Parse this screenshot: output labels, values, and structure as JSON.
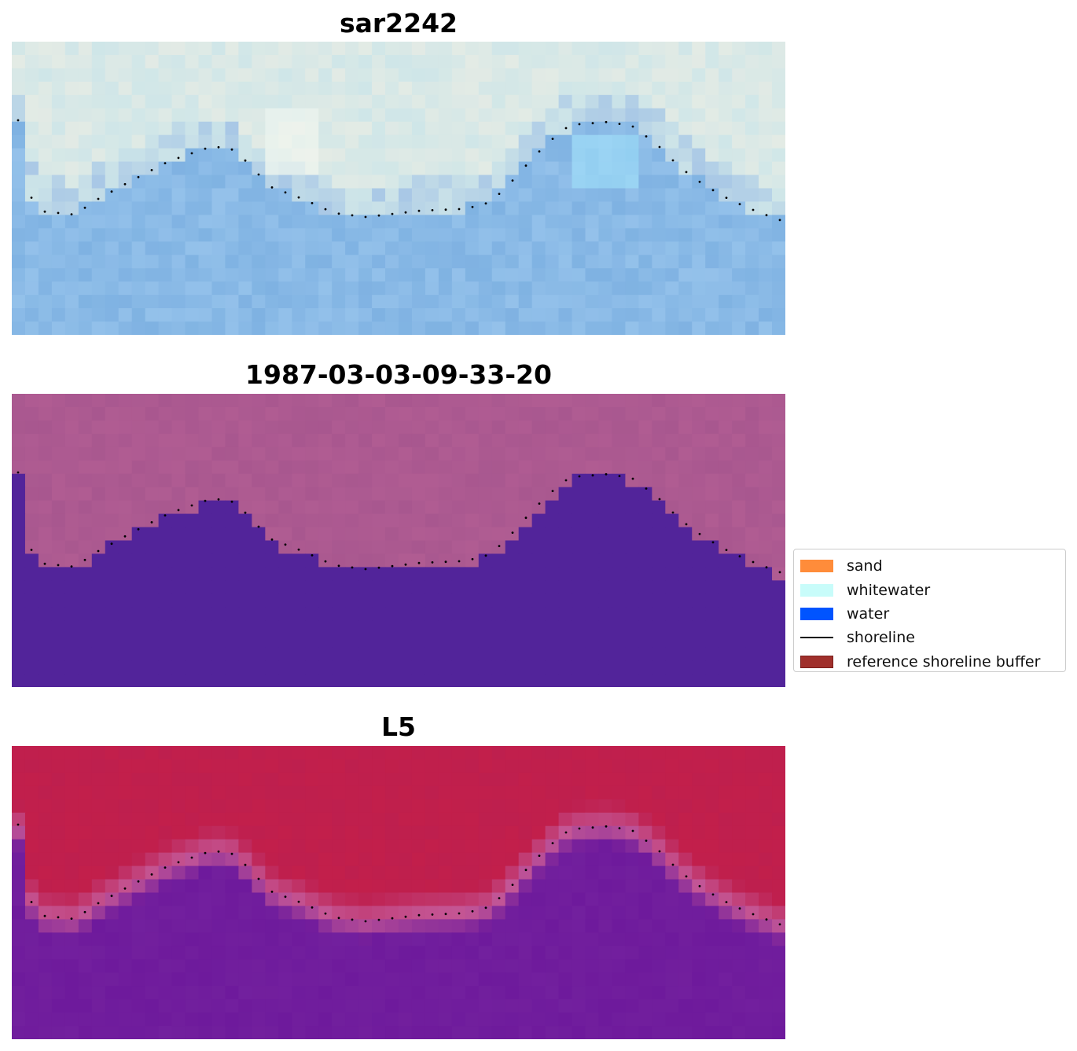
{
  "panels": [
    {
      "title": "sar2242",
      "style": "rgb",
      "palette": [
        "#a9c8e6",
        "#cfe6e8",
        "#e8ece4",
        "#7fb2e2",
        "#9dc8ee"
      ]
    },
    {
      "title": "1987-03-03-09-33-20",
      "style": "classified",
      "land_color": "#a8578f",
      "water_color": "#52249a"
    },
    {
      "title": "L5",
      "style": "index",
      "land_color": "#be1f4e",
      "water_color": "#6e1a9c",
      "edge_color": "#c45796"
    }
  ],
  "legend": {
    "items": [
      {
        "label": "sand",
        "color": "#ff8c3a",
        "kind": "patch"
      },
      {
        "label": "whitewater",
        "color": "#c8fcfa",
        "kind": "patch"
      },
      {
        "label": "water",
        "color": "#0054ff",
        "kind": "patch"
      },
      {
        "label": "shoreline",
        "color": "#000000",
        "kind": "line"
      },
      {
        "label": "reference shoreline buffer",
        "color": "#a0302c",
        "kind": "patch"
      }
    ]
  }
}
